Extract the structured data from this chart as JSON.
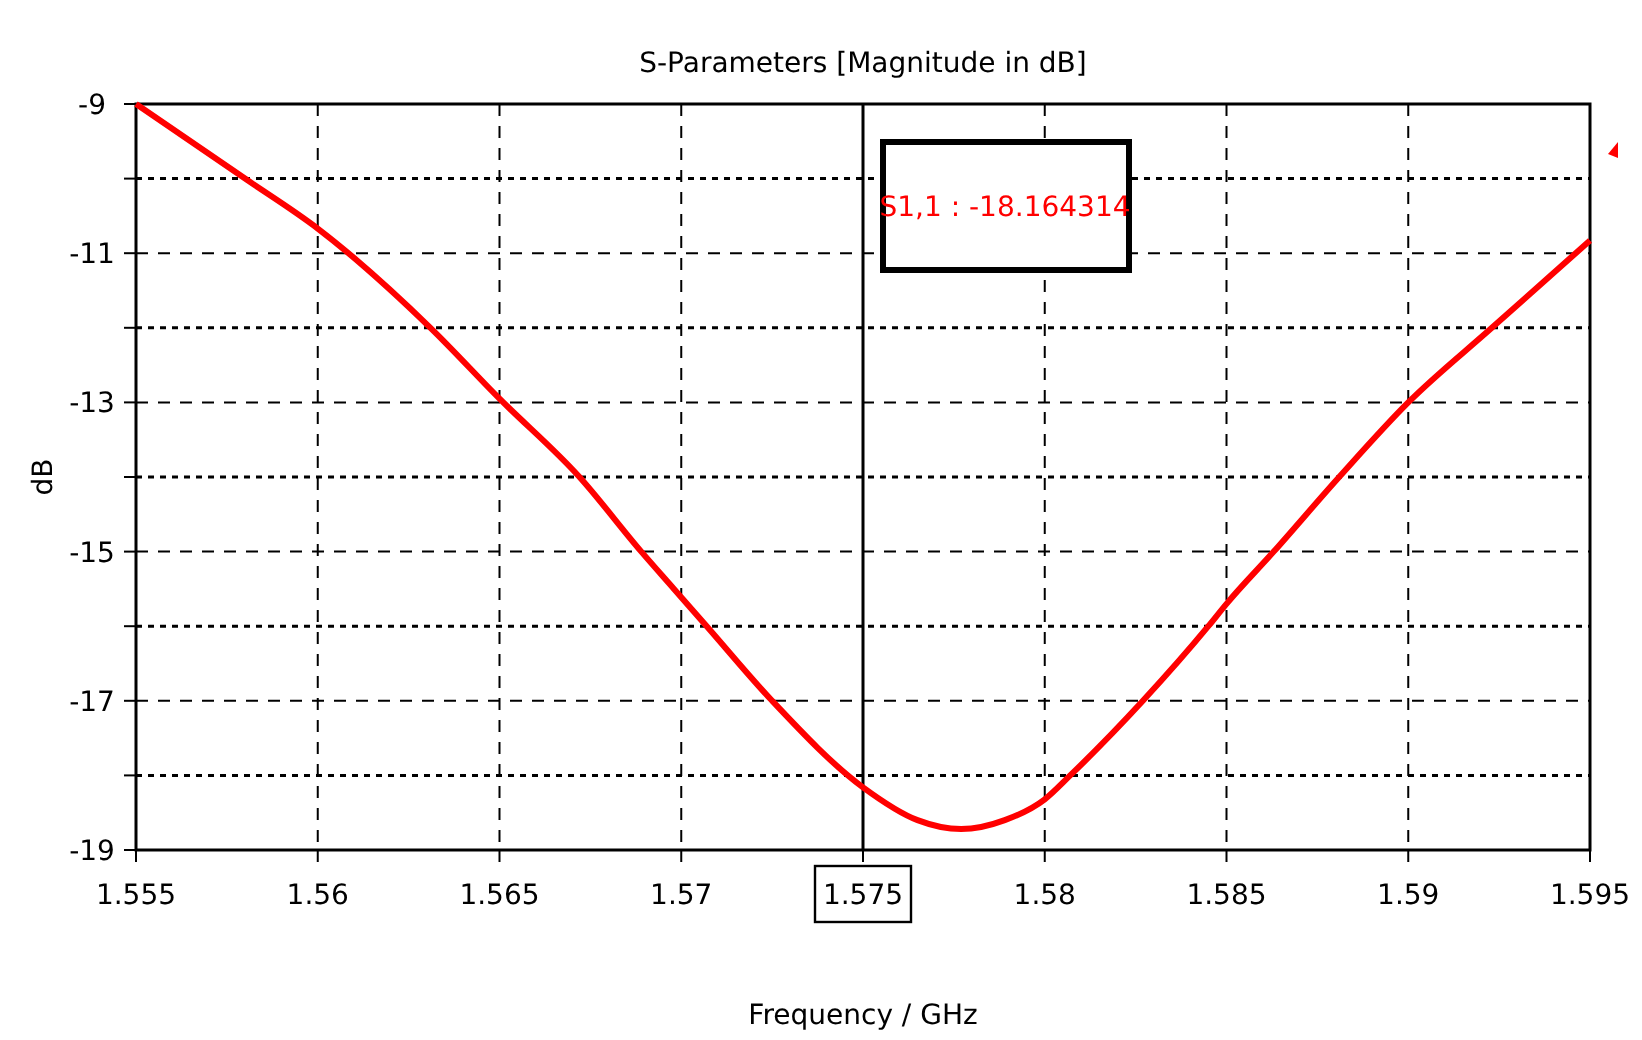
{
  "chart_data": {
    "type": "line",
    "title": "S-Parameters [Magnitude in dB]",
    "xlabel": "Frequency / GHz",
    "ylabel": "dB",
    "xlim": [
      1.555,
      1.595
    ],
    "xticks": [
      1.555,
      1.56,
      1.565,
      1.57,
      1.575,
      1.58,
      1.585,
      1.59,
      1.595
    ],
    "ylim": [
      -19,
      -9
    ],
    "yticks": [
      -9,
      {
        "value": -10,
        "label": null
      },
      -11,
      {
        "value": -12,
        "label": null
      },
      -13,
      {
        "value": -14,
        "label": null
      },
      -15,
      {
        "value": -16,
        "label": null
      },
      -17,
      {
        "value": -18,
        "label": null
      },
      -19
    ],
    "grid": true,
    "line_style": "solid",
    "marker": "none",
    "ref_lines": [
      {
        "axis": "x",
        "value": 1.575,
        "color": "#000000"
      }
    ],
    "annotations": [
      "S1,1 : -18.164314"
    ],
    "series": [
      {
        "color": "#ff0000",
        "x": [
          1.555,
          1.558,
          1.56,
          1.5631,
          1.565,
          1.5672,
          1.5689,
          1.5698,
          1.5707,
          1.5725,
          1.575,
          1.5765,
          1.5777,
          1.5789,
          1.58,
          1.5807,
          1.5827,
          1.5845,
          1.585,
          1.5863,
          1.5881,
          1.59,
          1.5923,
          1.595
        ],
        "values": [
          -9.0,
          -10.0,
          -10.67,
          -12.0,
          -12.95,
          -14.0,
          -15.0,
          -15.5,
          -16.0,
          -17.0,
          -18.16,
          -18.6,
          -18.72,
          -18.6,
          -18.32,
          -18.0,
          -17.0,
          -16.0,
          -15.7,
          -15.0,
          -14.0,
          -13.0,
          -12.0,
          -10.83
        ]
      }
    ]
  }
}
